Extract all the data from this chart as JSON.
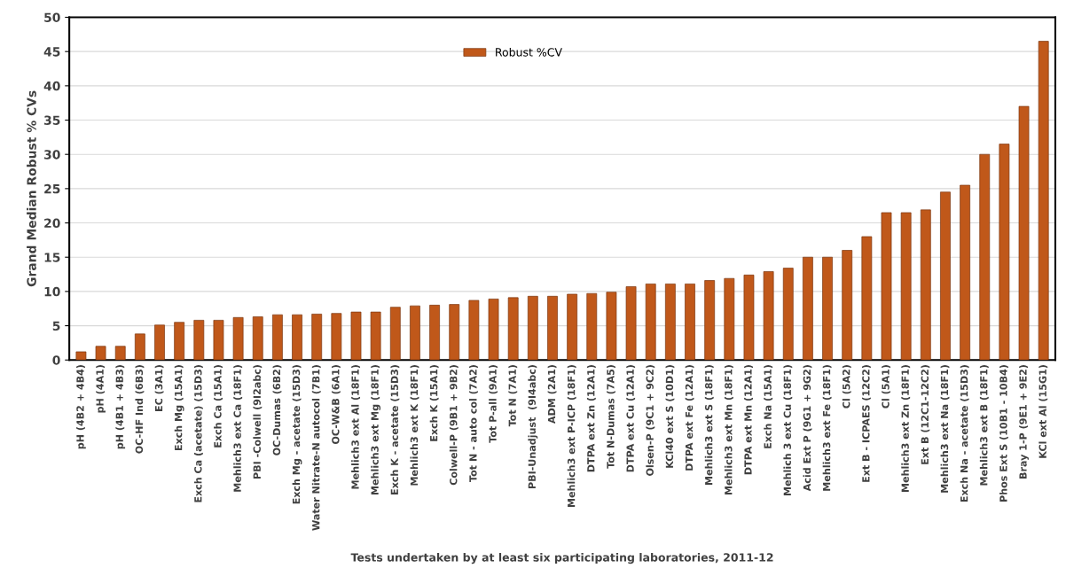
{
  "chart_data": {
    "type": "bar",
    "xlabel": "Tests undertaken by at least six participating laboratories, 2011-12",
    "ylabel": "Grand Median Robust % CVs",
    "categories": [
      "pH (4B2 + 4B4)",
      "pH (4A1)",
      "pH (4B1 + 4B3)",
      "OC-HF Ind (6B3)",
      "EC (3A1)",
      "Exch Mg (15A1)",
      "Exch Ca (acetate) (15D3)",
      "Exch Ca (15A1)",
      "Mehlich3 ext Ca (18F1)",
      "PBI -Colwell (9I2abc)",
      "OC-Dumas (6B2)",
      "Exch Mg - acetate (15D3)",
      "Water Nitrate-N autocol (7B1)",
      "OC-W&B (6A1)",
      "Mehlich3 ext Al (18F1)",
      "Mehlich3 ext Mg (18F1)",
      "Exch K - acetate (15D3)",
      "Mehlich3 ext K (18F1)",
      "Exch K (15A1)",
      "Colwell-P (9B1 + 9B2)",
      "Tot N - auto col (7A2)",
      "Tot P-all (9A1)",
      "Tot N (7A1)",
      "PBI-Unadjust  (9I4abc)",
      "ADM (2A1)",
      "Mehlich3 ext P-ICP (18F1)",
      "DTPA ext Zn (12A1)",
      "Tot N-Dumas (7A5)",
      "DTPA ext Cu (12A1)",
      "Olsen-P (9C1 + 9C2)",
      "KCl40 ext S (10D1)",
      "DTPA ext Fe (12A1)",
      "Mehlich3 ext S (18F1)",
      "Mehlich3 ext Mn (18F1)",
      "DTPA ext Mn (12A1)",
      "Exch Na (15A1)",
      "Mehlich 3 ext Cu (18F1)",
      "Acid Ext P (9G1 + 9G2)",
      "Mehlich3 ext Fe (18F1)",
      "Cl (5A2)",
      "Ext B - ICPAES (12C2)",
      "Cl (5A1)",
      "Mehlich3 ext Zn (18F1)",
      "Ext B (12C1-12C2)",
      "Mehlich3 ext Na (18F1)",
      "Exch Na - acetate (15D3)",
      "Mehlich3 ext B (18F1)",
      "Phos Ext S (10B1 - 10B4)",
      "Bray 1-P (9E1 + 9E2)",
      "KCl ext Al (15G1)"
    ],
    "series": [
      {
        "name": "Robust %CV",
        "color": "#c0581a",
        "values": [
          1.2,
          2.0,
          2.0,
          3.8,
          5.1,
          5.5,
          5.8,
          5.8,
          6.2,
          6.3,
          6.6,
          6.6,
          6.7,
          6.8,
          7.0,
          7.0,
          7.7,
          7.9,
          8.0,
          8.1,
          8.7,
          8.9,
          9.1,
          9.3,
          9.3,
          9.6,
          9.7,
          9.9,
          10.7,
          11.1,
          11.1,
          11.1,
          11.6,
          11.9,
          12.4,
          12.9,
          13.4,
          15.0,
          15.0,
          16.0,
          18.0,
          21.5,
          21.5,
          21.9,
          24.5,
          25.5,
          30.0,
          31.5,
          37.0,
          46.5
        ]
      }
    ],
    "ylim": [
      0,
      50
    ],
    "yticks": [
      0,
      5,
      10,
      15,
      20,
      25,
      30,
      35,
      40,
      45,
      50
    ],
    "grid": "y",
    "legend": "top"
  }
}
